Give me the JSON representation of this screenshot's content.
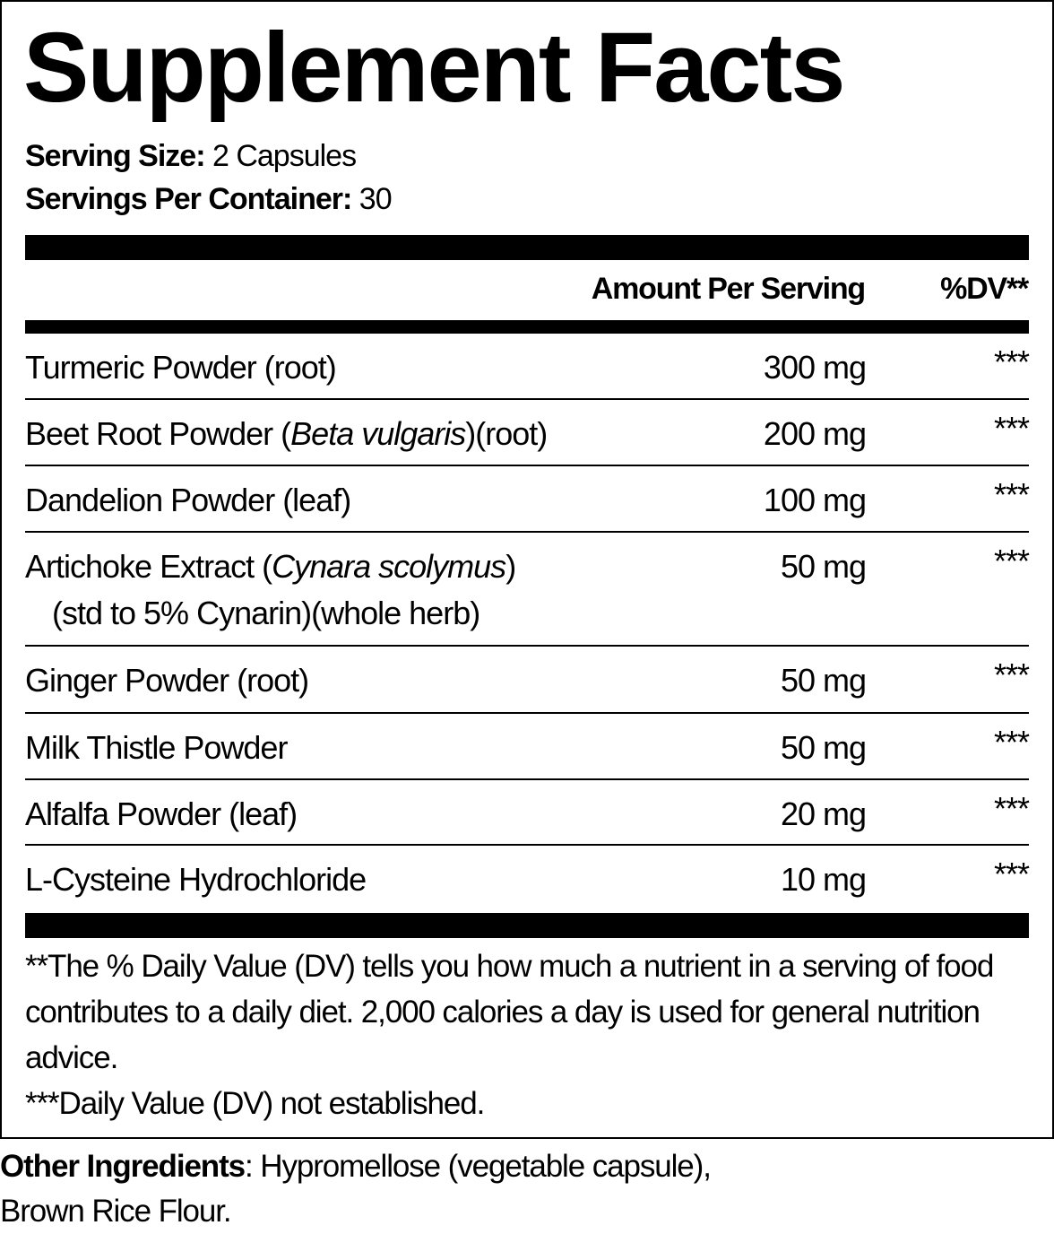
{
  "title": "Supplement Facts",
  "serving_size": {
    "label": "Serving Size:",
    "value": "2 Capsules"
  },
  "servings_per_container": {
    "label": "Servings Per Container:",
    "value": "30"
  },
  "header": {
    "amount": "Amount Per Serving",
    "dv": "%DV**"
  },
  "rows": [
    {
      "name": [
        {
          "text": "Turmeric Powder (root)"
        }
      ],
      "amount": "300 mg",
      "dv": "***"
    },
    {
      "name": [
        {
          "text": "Beet Root Powder ("
        },
        {
          "text": "Beta vulgaris",
          "italic": true
        },
        {
          "text": ")(root)"
        }
      ],
      "amount": "200 mg",
      "dv": "***"
    },
    {
      "name": [
        {
          "text": "Dandelion Powder (leaf)"
        }
      ],
      "amount": "100 mg",
      "dv": "***"
    },
    {
      "name": [
        {
          "text": "Artichoke Extract ("
        },
        {
          "text": "Cynara scolymus",
          "italic": true
        },
        {
          "text": ")"
        }
      ],
      "note": "(std to 5% Cynarin)(whole herb)",
      "amount": "50 mg",
      "dv": "***"
    },
    {
      "name": [
        {
          "text": "Ginger Powder (root)"
        }
      ],
      "amount": "50 mg",
      "dv": "***"
    },
    {
      "name": [
        {
          "text": "Milk Thistle Powder"
        }
      ],
      "amount": "50 mg",
      "dv": "***"
    },
    {
      "name": [
        {
          "text": "Alfalfa Powder (leaf)"
        }
      ],
      "amount": "20 mg",
      "dv": "***"
    },
    {
      "name": [
        {
          "text": "L-Cysteine Hydrochloride"
        }
      ],
      "amount": "10 mg",
      "dv": "***"
    }
  ],
  "footnotes": [
    "**The % Daily Value (DV) tells you how much a nutrient in a serving of food contributes to a daily diet. 2,000 calories a day is used for general nutrition advice.",
    "***Daily Value (DV) not established."
  ],
  "other_ingredients": {
    "label": "Other Ingredients",
    "lines": [
      ": Hypromellose (vegetable capsule),",
      "Brown Rice Flour."
    ]
  }
}
